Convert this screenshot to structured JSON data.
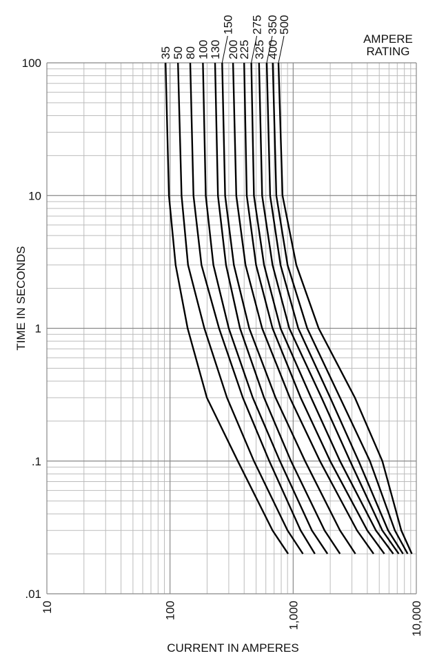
{
  "chart_data": {
    "type": "line",
    "x_label": "CURRENT IN AMPERES",
    "y_label": "TIME IN SECONDS",
    "legend_title": [
      "AMPERE",
      "RATING"
    ],
    "log_x": true,
    "log_y": true,
    "xlim": [
      10,
      10000
    ],
    "ylim": [
      0.01,
      100
    ],
    "xticks": [
      10,
      100,
      {
        "value": 1000,
        "label": "1,000"
      },
      {
        "value": 10000,
        "label": "10,000"
      }
    ],
    "yticks": [
      {
        "value": 0.01,
        "label": ".01"
      },
      {
        "value": 0.1,
        "label": ".1"
      },
      1,
      10,
      100
    ],
    "xminor_ticks": [
      20,
      30,
      40,
      50,
      60,
      70,
      80,
      90,
      200,
      300,
      400,
      500,
      600,
      700,
      800,
      900,
      2000,
      3000,
      4000,
      5000,
      6000,
      7000,
      8000,
      9000
    ],
    "yminor_ticks": [
      0.02,
      0.03,
      0.04,
      0.05,
      0.06,
      0.07,
      0.08,
      0.09,
      0.2,
      0.3,
      0.4,
      0.5,
      0.6,
      0.7,
      0.8,
      0.9,
      2,
      3,
      4,
      5,
      6,
      7,
      8,
      9,
      20,
      30,
      40,
      50,
      60,
      70,
      80,
      90
    ],
    "y": [
      100,
      10,
      3,
      1,
      0.3,
      0.1,
      0.03,
      0.02
    ],
    "series": [
      {
        "name": "35",
        "color": "#000",
        "x": [
          92,
          98,
          111,
          139,
          199,
          355,
          680,
          910
        ]
      },
      {
        "name": "50",
        "color": "#000",
        "x": [
          116,
          124,
          140,
          190,
          290,
          480,
          900,
          1200
        ]
      },
      {
        "name": "80",
        "color": "#000",
        "x": [
          146,
          155,
          180,
          250,
          390,
          640,
          1150,
          1500
        ]
      },
      {
        "name": "100",
        "color": "#000",
        "x": [
          185,
          195,
          225,
          300,
          470,
          780,
          1420,
          1900
        ]
      },
      {
        "name": "130",
        "color": "#000",
        "x": [
          232,
          245,
          285,
          370,
          580,
          960,
          1800,
          2400
        ]
      },
      {
        "name": "150",
        "color": "#000",
        "x": [
          265,
          280,
          330,
          440,
          720,
          1250,
          2400,
          3200
        ]
      },
      {
        "name": "200",
        "color": "#000",
        "x": [
          325,
          345,
          410,
          560,
          940,
          1650,
          3300,
          4500
        ]
      },
      {
        "name": "225",
        "color": "#000",
        "x": [
          400,
          420,
          500,
          680,
          1150,
          2000,
          4000,
          5500
        ]
      },
      {
        "name": "275",
        "color": "#000",
        "x": [
          457,
          480,
          580,
          790,
          1400,
          2400,
          4700,
          6500
        ]
      },
      {
        "name": "325",
        "color": "#000",
        "x": [
          528,
          560,
          680,
          930,
          1700,
          2900,
          5300,
          7200
        ]
      },
      {
        "name": "350",
        "color": "#000",
        "x": [
          610,
          650,
          790,
          1100,
          2000,
          3400,
          5900,
          7800
        ]
      },
      {
        "name": "400",
        "color": "#000",
        "x": [
          683,
          730,
          900,
          1300,
          2400,
          4200,
          6700,
          8500
        ]
      },
      {
        "name": "500",
        "color": "#000",
        "x": [
          760,
          820,
          1060,
          1610,
          3170,
          5300,
          7550,
          9200
        ]
      }
    ]
  }
}
